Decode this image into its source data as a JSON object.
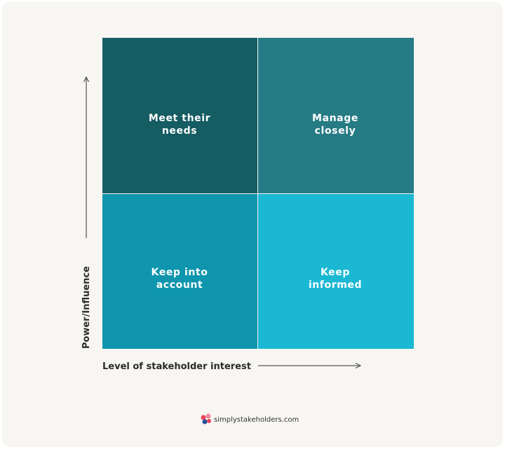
{
  "quadrants": [
    {
      "lines": [
        "Meet their",
        "needs"
      ]
    },
    {
      "lines": [
        "Manage",
        "closely"
      ]
    },
    {
      "lines": [
        "Keep into",
        "account"
      ]
    },
    {
      "lines": [
        "Keep",
        "informed"
      ]
    }
  ],
  "y_axis_label": "Power/Influence",
  "x_axis_label": "Level of stakeholder interest",
  "footer": "simplystakeholders.com"
}
